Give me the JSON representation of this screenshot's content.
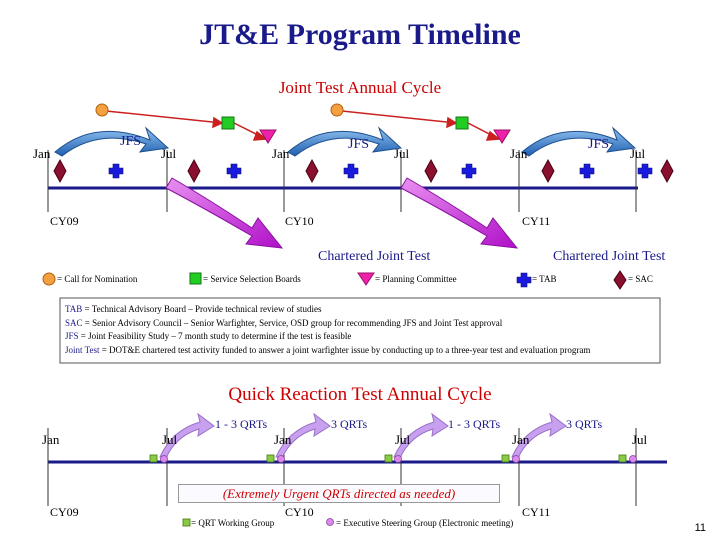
{
  "title": "JT&E Program Timeline",
  "subtitle1": "Joint Test Annual Cycle",
  "top_timeline": {
    "months": [
      "Jan",
      "Jul",
      "Jan",
      "Jul",
      "Jan",
      "Jul"
    ],
    "jfs": [
      "JFS",
      "JFS",
      "JFS"
    ],
    "years": [
      "CY09",
      "CY10",
      "CY11"
    ],
    "chartered": [
      "Chartered Joint Test",
      "Chartered Joint Test"
    ]
  },
  "legend": {
    "nomination": "= Call for Nomination",
    "selection": "= Service Selection Boards",
    "planning": "= Planning Committee",
    "tab": "= TAB",
    "sac": "= SAC"
  },
  "definitions": [
    {
      "term": "TAB",
      "text": " = Technical Advisory Board – Provide technical review of studies"
    },
    {
      "term": "SAC",
      "text": " = Senior Advisory Council – Senior Warfighter, Service, OSD group for recommending JFS and Joint Test approval"
    },
    {
      "term": "JFS",
      "text": " = Joint Feasibility Study – 7 month study to determine if the test is feasible"
    },
    {
      "term": "Joint Test",
      "text": " = DOT&E chartered test activity funded to answer a joint warfighter issue by conducting up to a three-year test and evaluation program"
    }
  ],
  "subtitle2": "Quick Reaction Test Annual Cycle",
  "bottom_timeline": {
    "months": [
      "Jan",
      "Jul",
      "Jan",
      "Jul",
      "Jan",
      "Jul"
    ],
    "qrts": [
      "1 - 3 QRTs",
      "3 QRTs",
      "1 - 3 QRTs",
      "3 QRTs"
    ],
    "years": [
      "CY09",
      "CY10",
      "CY11"
    ],
    "urgent": "(Extremely Urgent QRTs directed as needed)",
    "legend_qwg": "= QRT Working Group",
    "legend_esg": "= Executive Steering Group (Electronic meeting)"
  },
  "page_number": "11",
  "colors": {
    "title": "#1a1a8a",
    "subtitle": "#cc0000",
    "timeline": "#1a1a8a",
    "nomination": "#f5a040",
    "selection": "#22cc22",
    "planning": "#ee22aa",
    "tab": "#1a1adc",
    "sac": "#8a1030",
    "jfs_arrow": "#3a7fd0",
    "charter_arrow": "#cc22dd",
    "qrt_arrow": "#c8a0f0"
  }
}
